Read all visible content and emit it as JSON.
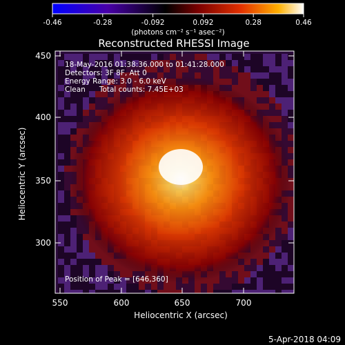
{
  "colorbar": {
    "ticks": [
      "-0.46",
      "-0.28",
      "-0.092",
      "0.092",
      "0.28",
      "0.46"
    ],
    "unit_label": "(photons cm⁻² s⁻¹ asec⁻²)",
    "colors": [
      "#0000ff",
      "#4800a8",
      "#000000",
      "#7a0000",
      "#e23000",
      "#ffb000",
      "#ffffff"
    ]
  },
  "plot": {
    "title": "Reconstructed RHESSI Image",
    "xlabel": "Heliocentric X (arcsec)",
    "ylabel": "Heliocentric Y (arcsec)",
    "xticks": [
      "550",
      "600",
      "650",
      "700"
    ],
    "yticks": [
      "450",
      "400",
      "350",
      "300"
    ],
    "annotations": [
      "18-May-2016 01:38:36.000 to 01:41:28.000",
      "Detectors: 3F 8F, Att 0",
      "Energy Range: 3.0 - 6.0 keV",
      "Clean      Total counts: 7.45E+03"
    ],
    "peak_label": "Position of Peak = [646,360]"
  },
  "chart_data": {
    "type": "heatmap",
    "title": "Reconstructed RHESSI Image",
    "xlabel": "Heliocentric X (arcsec)",
    "ylabel": "Heliocentric Y (arcsec)",
    "xlim": [
      546,
      738
    ],
    "ylim": [
      258,
      454
    ],
    "peak": [
      646,
      360
    ],
    "color_range": [
      -0.46,
      0.46
    ]
  },
  "timestamp": "5-Apr-2018 04:09"
}
